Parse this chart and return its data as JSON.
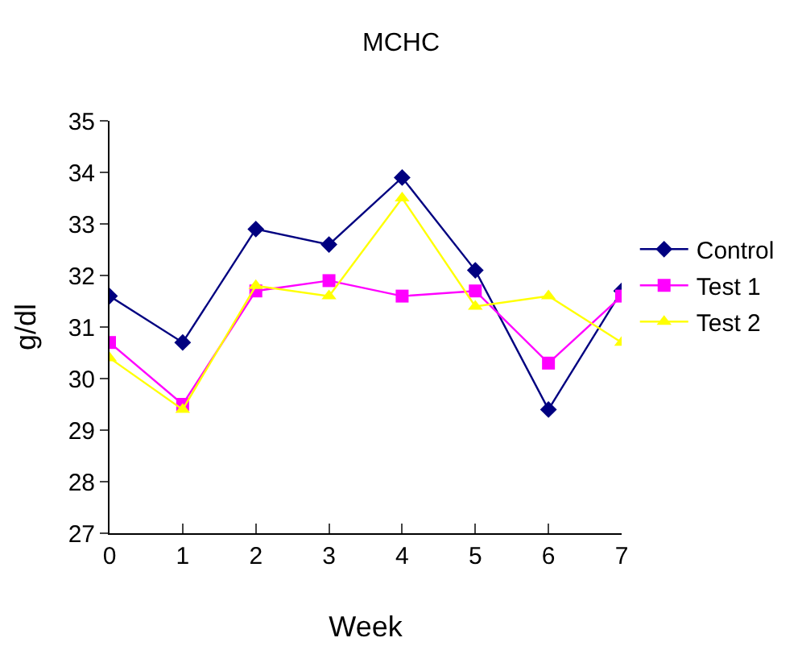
{
  "chart_data": {
    "type": "line",
    "title": "MCHC",
    "xlabel": "Week",
    "ylabel": "g/dl",
    "x": [
      0,
      1,
      2,
      3,
      4,
      5,
      6,
      7
    ],
    "xlim": [
      0,
      7
    ],
    "xticks": [
      0,
      1,
      2,
      3,
      4,
      5,
      6,
      7
    ],
    "ylim": [
      27,
      35
    ],
    "yticks": [
      27,
      28,
      29,
      30,
      31,
      32,
      33,
      34,
      35
    ],
    "series": [
      {
        "name": "Control",
        "color": "#000080",
        "marker": "diamond",
        "values": [
          31.6,
          30.7,
          32.9,
          32.6,
          33.9,
          32.1,
          29.4,
          31.7
        ]
      },
      {
        "name": "Test 1",
        "color": "#ff00ff",
        "marker": "square",
        "values": [
          30.7,
          29.5,
          31.7,
          31.9,
          31.6,
          31.7,
          30.3,
          31.6
        ]
      },
      {
        "name": "Test 2",
        "color": "#ffff00",
        "marker": "triangle",
        "values": [
          30.4,
          29.4,
          31.8,
          31.6,
          33.5,
          31.4,
          31.6,
          30.7
        ]
      }
    ],
    "grid": false,
    "legend": "right",
    "line_style": "solid"
  }
}
